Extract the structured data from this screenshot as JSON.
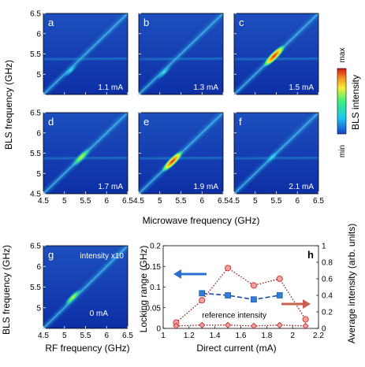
{
  "figure": {
    "ylabel_top": "BLS frequency (GHz)",
    "xlabel_top": "Microwave frequency (GHz)",
    "colorbar": {
      "max_label": "max",
      "min_label": "min",
      "title": "BLS intensity"
    },
    "x_ticks": [
      "4.5",
      "5",
      "5.5",
      "6",
      "6.5"
    ],
    "y_ticks": [
      "4.5",
      "5",
      "5.5",
      "6",
      "6.5"
    ],
    "panels": [
      {
        "letter": "a",
        "current": "1.1 mA",
        "peak": 0.3,
        "blob": [
          5.15,
          5.1
        ]
      },
      {
        "letter": "b",
        "current": "1.3 mA",
        "peak": 0.4,
        "blob": [
          5.1,
          5.05
        ]
      },
      {
        "letter": "c",
        "current": "1.5 mA",
        "peak": 1.0,
        "blob": [
          5.45,
          5.45
        ]
      },
      {
        "letter": "d",
        "current": "1.7 mA",
        "peak": 0.8,
        "blob": [
          5.4,
          5.4
        ]
      },
      {
        "letter": "e",
        "current": "1.9 mA",
        "peak": 0.95,
        "blob": [
          5.3,
          5.3
        ]
      },
      {
        "letter": "f",
        "current": "2.1 mA",
        "peak": 0.2,
        "blob": [
          5.4,
          5.4
        ]
      }
    ],
    "panel_g": {
      "letter": "g",
      "note": "intensity x10",
      "current": "0 mA",
      "xlabel": "RF frequency (GHz)",
      "ylabel": "BLS frequency (GHz)",
      "x_ticks": [
        "4.5",
        "5",
        "5.5",
        "6",
        "6.5"
      ],
      "y_ticks": [
        "5",
        "5.5",
        "6",
        "6.5"
      ]
    }
  },
  "chart_data": {
    "type": "scatter",
    "panel_letter": "h",
    "xlabel": "Direct current (mA)",
    "ylabel": "Locking range (GHz)",
    "ylabel2": "Average intensity (arb. units)",
    "xlim": [
      1.0,
      2.2
    ],
    "ylim": [
      0,
      0.2
    ],
    "ylim2": [
      0,
      1
    ],
    "x_ticks": [
      "1",
      "1.2",
      "1.4",
      "1.6",
      "1.8",
      "2",
      "2.2"
    ],
    "y_ticks": [
      "0",
      "0.05",
      "0.1",
      "0.15",
      "0.2"
    ],
    "y2_ticks": [
      "0",
      "0.2",
      "0.4",
      "0.6",
      "0.8",
      "1"
    ],
    "annotation": "reference intensity",
    "series": [
      {
        "axis": "left",
        "marker": "square",
        "color": "#2f7fd8",
        "line": "dashed",
        "x": [
          1.3,
          1.5,
          1.7,
          1.9
        ],
        "y": [
          0.085,
          0.08,
          0.07,
          0.08
        ]
      },
      {
        "axis": "right",
        "marker": "circle",
        "color": "#e06060",
        "line": "dotted",
        "x": [
          1.1,
          1.3,
          1.5,
          1.7,
          1.9,
          2.1
        ],
        "y": [
          0.07,
          0.34,
          0.73,
          0.52,
          0.6,
          0.11
        ]
      },
      {
        "axis": "right",
        "marker": "diamond",
        "color": "#e06060",
        "line": "dotted",
        "x": [
          1.1,
          1.3,
          1.5,
          1.7,
          1.9,
          2.1
        ],
        "y": [
          0.03,
          0.04,
          0.04,
          0.03,
          0.04,
          0.03
        ]
      }
    ]
  }
}
